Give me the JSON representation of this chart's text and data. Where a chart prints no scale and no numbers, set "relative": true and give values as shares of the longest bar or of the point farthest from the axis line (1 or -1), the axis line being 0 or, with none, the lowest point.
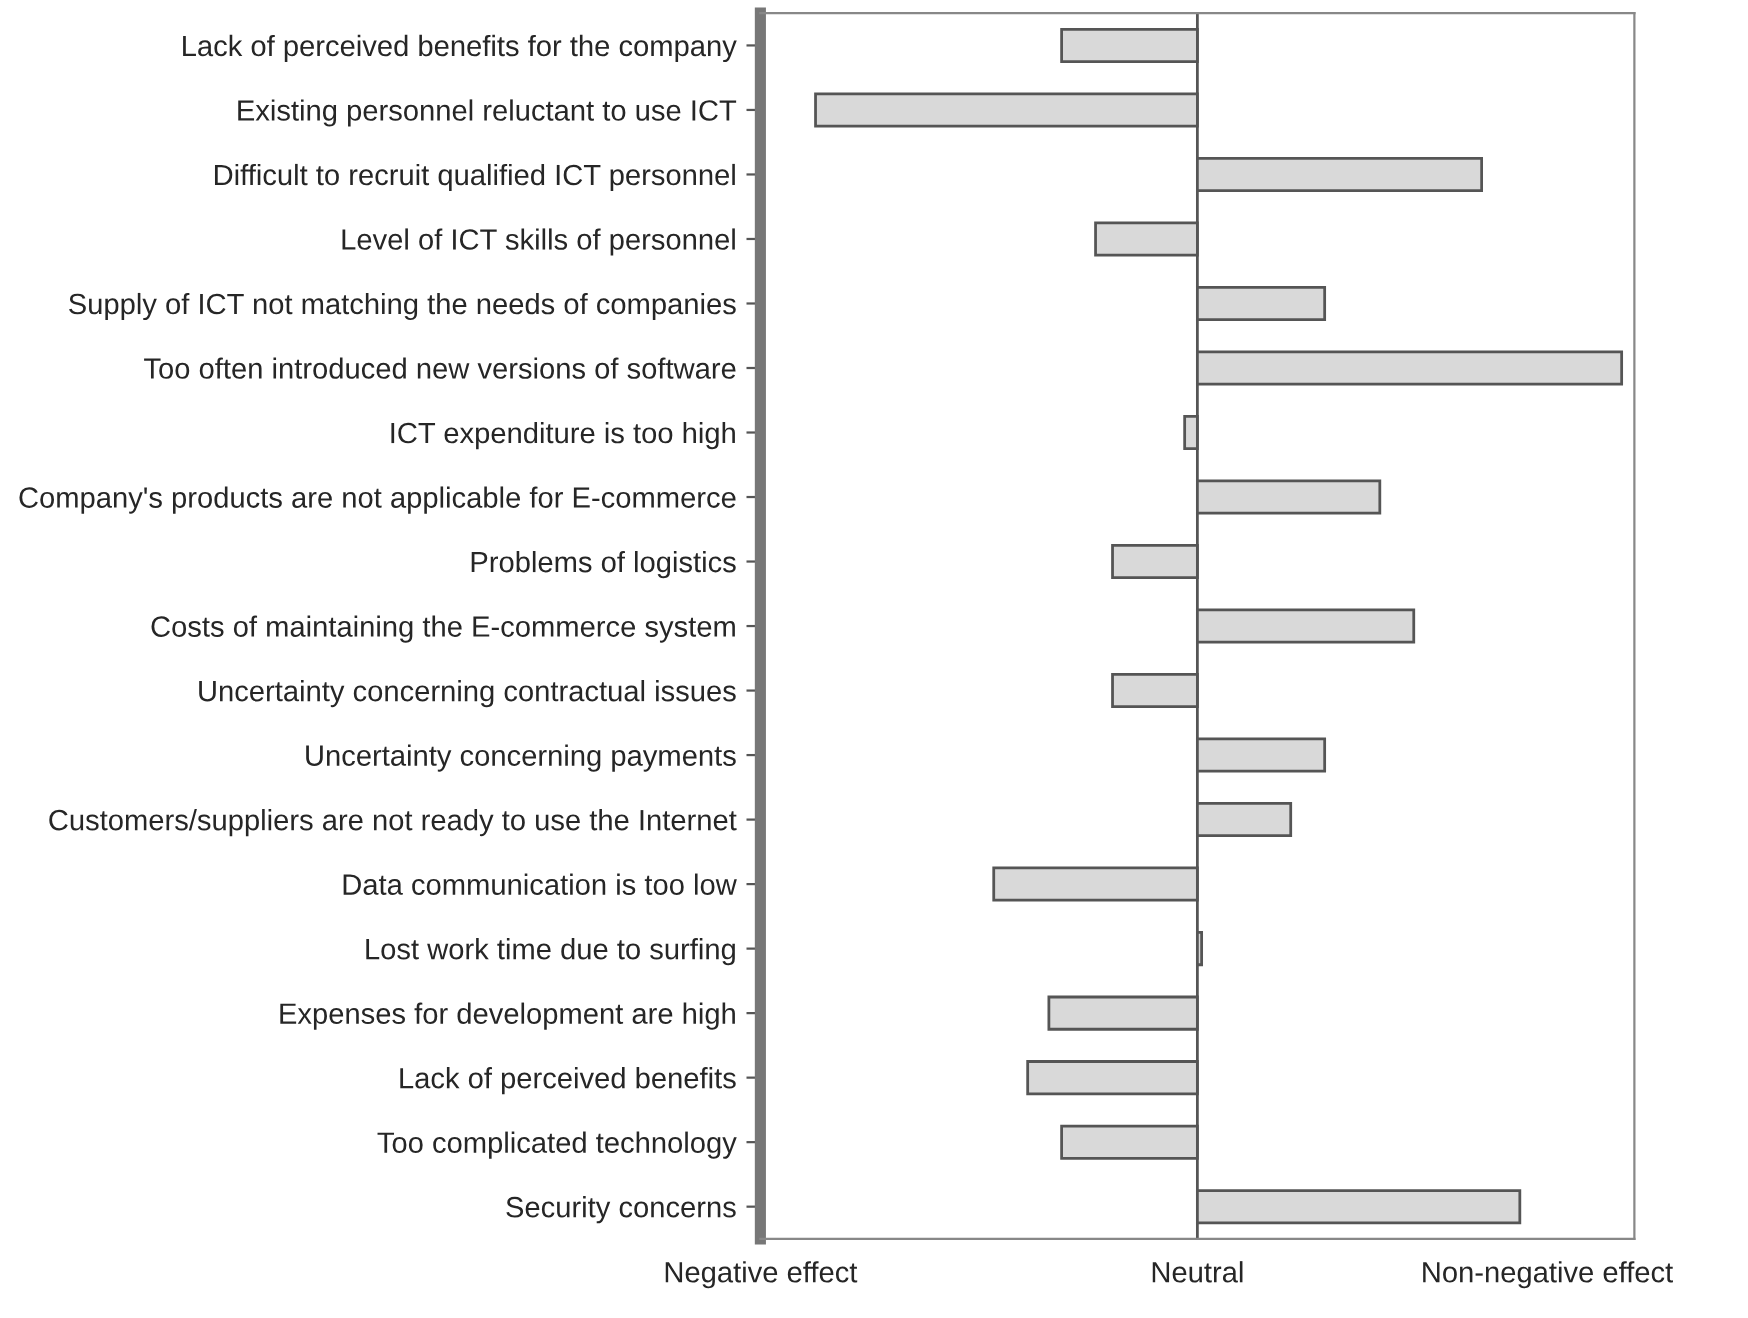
{
  "chart_data": {
    "type": "bar",
    "orientation": "horizontal",
    "relative": true,
    "categories": [
      "Lack of perceived benefits for the company",
      "Existing personnel reluctant to use ICT",
      "Difficult to recruit qualified ICT personnel",
      "Level of ICT skills of personnel",
      "Supply of ICT not matching the needs of companies",
      "Too often introduced new versions of software",
      "ICT expenditure is too high",
      "Company's products are not applicable for E-commerce",
      "Problems of logistics",
      "Costs of maintaining the E-commerce system",
      "Uncertainty concerning contractual issues",
      "Uncertainty concerning payments",
      "Customers/suppliers are not ready to use the Internet",
      "Data communication is too low",
      "Lost work time due to surfing",
      "Expenses for development are high",
      "Lack of perceived benefits",
      "Too complicated technology",
      "Security concerns"
    ],
    "values": [
      -0.32,
      -0.9,
      0.67,
      -0.24,
      0.3,
      1,
      -0.03,
      0.43,
      -0.2,
      0.51,
      -0.2,
      0.3,
      0.22,
      -0.48,
      0.01,
      -0.35,
      -0.4,
      -0.32,
      0.76
    ],
    "color": "#d9d9d9",
    "annotations": [
      "Negative effect",
      "Neutral",
      "Non-negative effect"
    ]
  }
}
